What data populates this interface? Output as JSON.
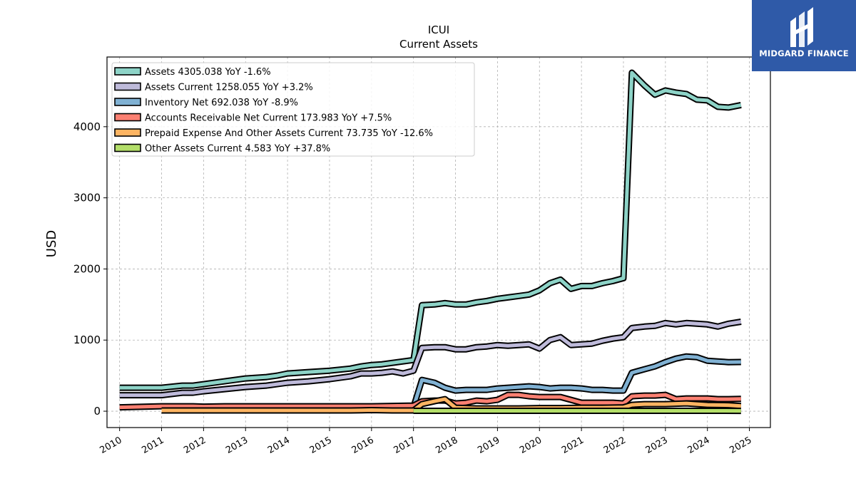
{
  "brand": {
    "name": "MIDGARD FINANCE",
    "color": "#2f5aa8"
  },
  "chart_data": {
    "type": "line",
    "title": "ICUI",
    "subtitle": "Current  Assets",
    "xlabel": "",
    "ylabel": "USD",
    "xlim": [
      2009.7,
      2025.5
    ],
    "ylim": [
      -230,
      4980
    ],
    "yticks": [
      0,
      1000,
      2000,
      3000,
      4000
    ],
    "xticks": [
      2010,
      2011,
      2012,
      2013,
      2014,
      2015,
      2016,
      2017,
      2018,
      2019,
      2020,
      2021,
      2022,
      2023,
      2024,
      2025
    ],
    "grid": true,
    "legend_position": "top-left",
    "series": [
      {
        "name": "Assets  4305.038 YoY -1.6%",
        "color": "#8dd3c7",
        "x": [
          2010.0,
          2011.0,
          2011.5,
          2011.75,
          2012.0,
          2012.5,
          2013.0,
          2013.5,
          2013.75,
          2014.0,
          2014.5,
          2015.0,
          2015.5,
          2015.75,
          2016.0,
          2016.25,
          2016.5,
          2016.75,
          2017.0,
          2017.2,
          2017.5,
          2017.75,
          2018.0,
          2018.25,
          2018.5,
          2018.75,
          2019.0,
          2019.25,
          2019.5,
          2019.75,
          2020.0,
          2020.25,
          2020.5,
          2020.75,
          2021.0,
          2021.25,
          2021.5,
          2021.75,
          2022.0,
          2022.2,
          2022.5,
          2022.75,
          2023.0,
          2023.25,
          2023.5,
          2023.75,
          2024.0,
          2024.25,
          2024.5,
          2024.8
        ],
        "y": [
          330,
          330,
          360,
          360,
          380,
          420,
          460,
          480,
          500,
          530,
          550,
          570,
          600,
          630,
          650,
          660,
          680,
          700,
          720,
          1490,
          1500,
          1520,
          1500,
          1500,
          1530,
          1550,
          1580,
          1600,
          1620,
          1640,
          1700,
          1800,
          1850,
          1720,
          1760,
          1760,
          1800,
          1830,
          1870,
          4760,
          4580,
          4450,
          4510,
          4480,
          4460,
          4380,
          4370,
          4280,
          4270,
          4305
        ]
      },
      {
        "name": "Assets Current  1258.055 YoY +3.2%",
        "color": "#bebada",
        "x": [
          2010.0,
          2011.0,
          2011.5,
          2011.75,
          2012.0,
          2012.5,
          2013.0,
          2013.5,
          2013.75,
          2014.0,
          2014.5,
          2015.0,
          2015.5,
          2015.75,
          2016.0,
          2016.25,
          2016.5,
          2016.75,
          2017.0,
          2017.2,
          2017.5,
          2017.75,
          2018.0,
          2018.25,
          2018.5,
          2018.75,
          2019.0,
          2019.25,
          2019.5,
          2019.75,
          2020.0,
          2020.25,
          2020.5,
          2020.75,
          2021.0,
          2021.25,
          2021.5,
          2021.75,
          2022.0,
          2022.2,
          2022.5,
          2022.75,
          2023.0,
          2023.25,
          2023.5,
          2023.75,
          2024.0,
          2024.25,
          2024.5,
          2024.8
        ],
        "y": [
          225,
          225,
          260,
          260,
          280,
          310,
          340,
          360,
          380,
          400,
          420,
          450,
          490,
          530,
          530,
          540,
          560,
          530,
          570,
          890,
          900,
          900,
          870,
          870,
          900,
          910,
          930,
          920,
          930,
          940,
          880,
          1000,
          1040,
          930,
          940,
          950,
          990,
          1020,
          1040,
          1170,
          1190,
          1200,
          1240,
          1220,
          1240,
          1230,
          1220,
          1190,
          1230,
          1258
        ]
      },
      {
        "name": "Inventory Net  692.038 YoY -8.9%",
        "color": "#80b1d3",
        "x": [
          2017.0,
          2017.2,
          2017.5,
          2017.75,
          2018.0,
          2018.25,
          2018.5,
          2018.75,
          2019.0,
          2019.25,
          2019.5,
          2019.75,
          2020.0,
          2020.25,
          2020.5,
          2020.75,
          2021.0,
          2021.25,
          2021.5,
          2021.75,
          2022.0,
          2022.2,
          2022.5,
          2022.75,
          2023.0,
          2023.25,
          2023.5,
          2023.75,
          2024.0,
          2024.25,
          2024.5,
          2024.8
        ],
        "y": [
          60,
          440,
          400,
          330,
          290,
          300,
          300,
          300,
          320,
          330,
          340,
          350,
          340,
          320,
          330,
          330,
          320,
          300,
          300,
          290,
          290,
          540,
          590,
          630,
          690,
          740,
          770,
          760,
          710,
          700,
          690,
          692
        ]
      },
      {
        "name": "Accounts Receivable Net Current  173.983 YoY +7.5%",
        "color": "#fb8072",
        "x": [
          2010.0,
          2011.0,
          2011.5,
          2011.75,
          2012.0,
          2012.5,
          2013.0,
          2013.5,
          2014.0,
          2014.5,
          2015.0,
          2015.5,
          2016.0,
          2016.5,
          2017.0,
          2017.2,
          2017.5,
          2017.75,
          2018.0,
          2018.25,
          2018.5,
          2018.75,
          2019.0,
          2019.25,
          2019.5,
          2019.75,
          2020.0,
          2020.25,
          2020.5,
          2020.75,
          2021.0,
          2021.25,
          2021.5,
          2021.75,
          2022.0,
          2022.2,
          2022.5,
          2022.75,
          2023.0,
          2023.25,
          2023.5,
          2023.75,
          2024.0,
          2024.25,
          2024.5,
          2024.8
        ],
        "y": [
          55,
          70,
          70,
          70,
          65,
          70,
          70,
          70,
          70,
          70,
          70,
          70,
          70,
          75,
          80,
          140,
          150,
          150,
          110,
          120,
          150,
          140,
          160,
          230,
          230,
          210,
          200,
          200,
          200,
          160,
          120,
          120,
          120,
          120,
          110,
          210,
          220,
          220,
          230,
          170,
          180,
          180,
          180,
          170,
          170,
          174
        ]
      },
      {
        "name": "Prepaid Expense And Other Assets Current  73.735 YoY -12.6%",
        "color": "#fdb462",
        "x": [
          2011.0,
          2012.0,
          2013.0,
          2014.0,
          2015.0,
          2015.5,
          2016.0,
          2016.5,
          2017.0,
          2017.2,
          2017.5,
          2017.75,
          2018.0,
          2018.5,
          2019.0,
          2019.5,
          2020.0,
          2020.5,
          2021.0,
          2021.5,
          2022.0,
          2022.2,
          2022.5,
          2022.75,
          2023.0,
          2023.5,
          2024.0,
          2024.5,
          2024.8
        ],
        "y": [
          10,
          10,
          10,
          10,
          10,
          10,
          15,
          10,
          10,
          100,
          140,
          170,
          50,
          40,
          40,
          40,
          45,
          45,
          50,
          50,
          55,
          90,
          100,
          100,
          100,
          110,
          90,
          85,
          74
        ]
      },
      {
        "name": "Other Assets Current  4.583 YoY +37.8%",
        "color": "#b3de69",
        "x": [
          2017.0,
          2017.5,
          2018.0,
          2019.0,
          2020.0,
          2021.0,
          2022.0,
          2023.0,
          2024.0,
          2024.8
        ],
        "y": [
          5,
          5,
          5,
          5,
          5,
          5,
          5,
          5,
          5,
          4.6
        ]
      }
    ]
  }
}
